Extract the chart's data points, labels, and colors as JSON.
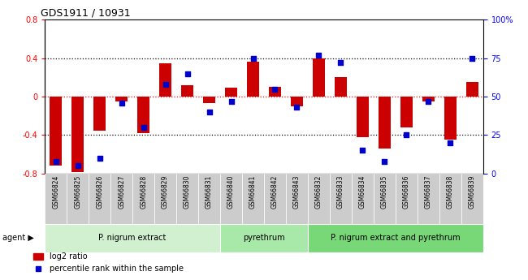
{
  "title": "GDS1911 / 10931",
  "samples": [
    "GSM66824",
    "GSM66825",
    "GSM66826",
    "GSM66827",
    "GSM66828",
    "GSM66829",
    "GSM66830",
    "GSM66831",
    "GSM66840",
    "GSM66841",
    "GSM66842",
    "GSM66843",
    "GSM66832",
    "GSM66833",
    "GSM66834",
    "GSM66835",
    "GSM66836",
    "GSM66837",
    "GSM66838",
    "GSM66839"
  ],
  "log2_ratio": [
    -0.72,
    -0.78,
    -0.35,
    -0.05,
    -0.38,
    0.35,
    0.12,
    -0.07,
    0.09,
    0.36,
    0.1,
    -0.1,
    0.4,
    0.2,
    -0.42,
    -0.54,
    -0.32,
    -0.05,
    -0.45,
    0.15
  ],
  "percentile_rank": [
    8,
    5,
    10,
    46,
    30,
    58,
    65,
    40,
    47,
    75,
    55,
    43,
    77,
    72,
    15,
    8,
    25,
    47,
    20,
    75
  ],
  "groups": [
    {
      "label": "P. nigrum extract",
      "start": 0,
      "end": 8
    },
    {
      "label": "pyrethrum",
      "start": 8,
      "end": 12
    },
    {
      "label": "P. nigrum extract and pyrethrum",
      "start": 12,
      "end": 20
    }
  ],
  "group_colors": [
    "#d0f0d0",
    "#a8e8a8",
    "#78d878"
  ],
  "bar_color": "#cc0000",
  "dot_color": "#0000cc",
  "ylim_left": [
    -0.8,
    0.8
  ],
  "ylim_right": [
    0,
    100
  ],
  "yticks_left": [
    -0.8,
    -0.4,
    0.0,
    0.4,
    0.8
  ],
  "ytick_labels_left": [
    "-0.8",
    "-0.4",
    "0",
    "0.4",
    "0.8"
  ],
  "yticks_right": [
    0,
    25,
    50,
    75,
    100
  ],
  "ytick_labels_right": [
    "0",
    "25",
    "50",
    "75",
    "100%"
  ],
  "hlines_black": [
    -0.4,
    0.4
  ],
  "hline_red": 0.0,
  "legend_bar_label": "log2 ratio",
  "legend_dot_label": "percentile rank within the sample",
  "agent_label": "agent ▶",
  "bar_width": 0.55,
  "dot_size": 25,
  "xlabel_color_gray": "#888888"
}
